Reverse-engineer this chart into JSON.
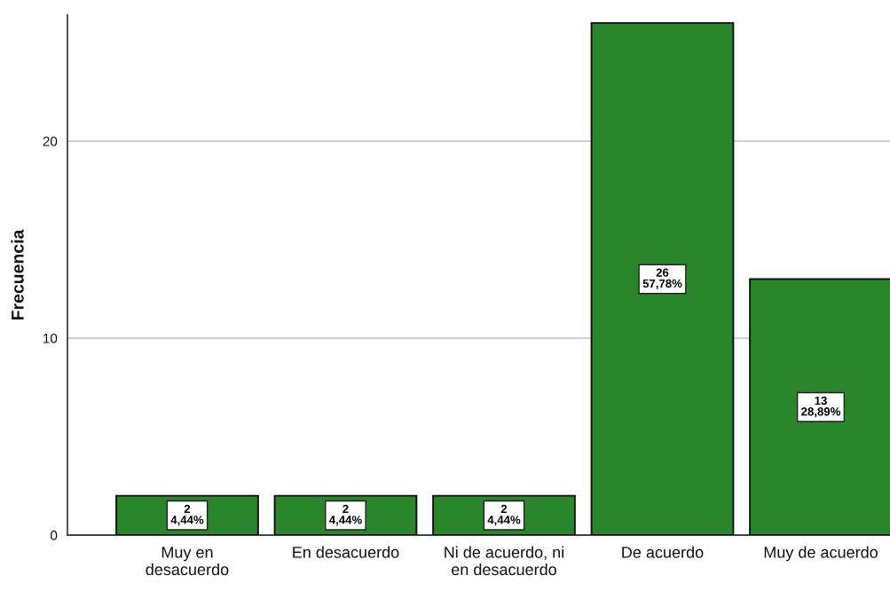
{
  "chart_data": {
    "type": "bar",
    "ylabel": "Frecuencia",
    "categories": [
      "Muy en\ndesacuerdo",
      "En desacuerdo",
      "Ni de acuerdo, ni\nen desacuerdo",
      "De acuerdo",
      "Muy de acuerdo"
    ],
    "values": [
      2,
      2,
      2,
      26,
      13
    ],
    "color": "#2a862a",
    "value_labels": [
      "2\n4,44%",
      "2\n4,44%",
      "2\n4,44%",
      "26\n57,78%",
      "13\n28,89%"
    ],
    "ylim": [
      0,
      26.4
    ],
    "yticks": [
      0,
      10,
      20
    ],
    "grid": "y"
  }
}
